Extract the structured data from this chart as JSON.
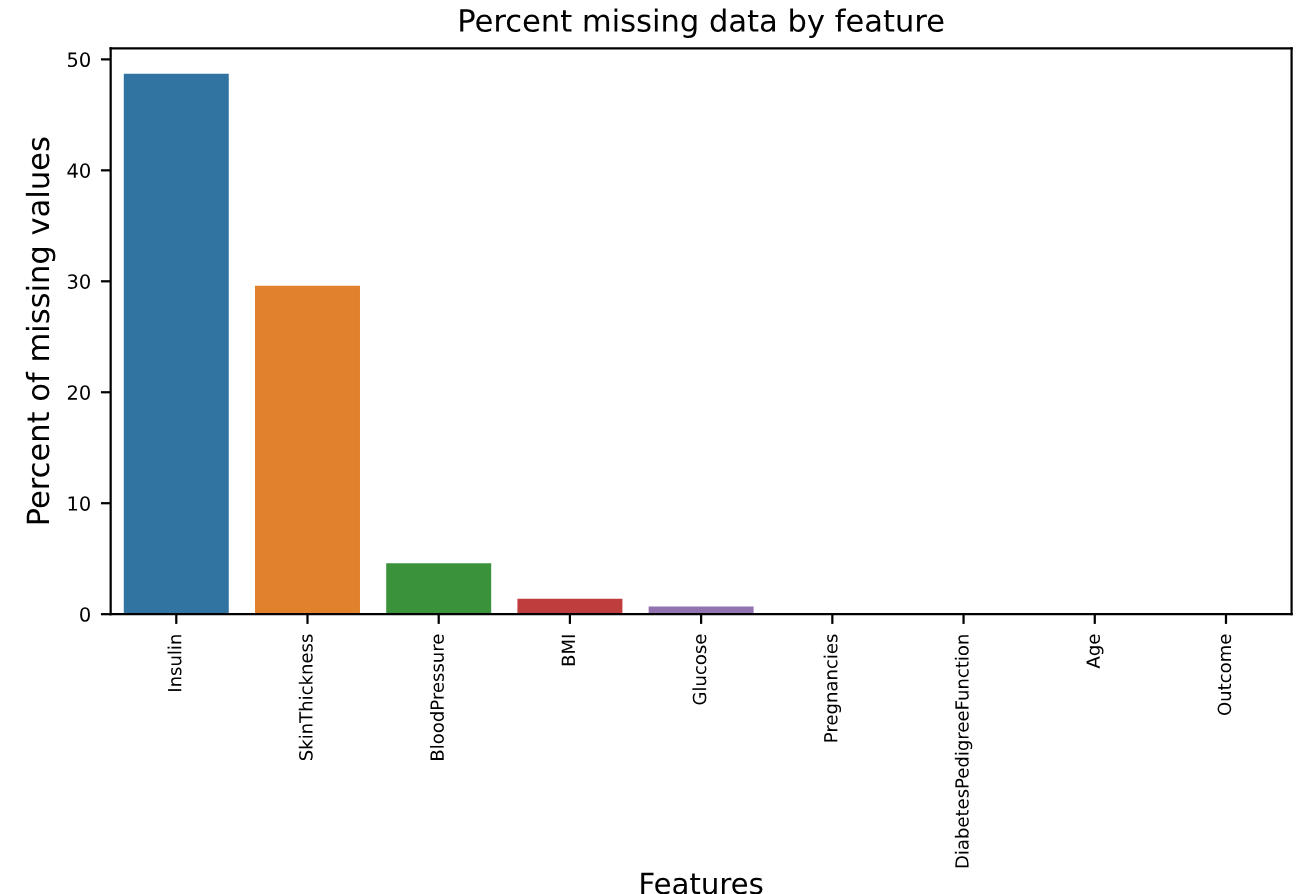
{
  "chart_data": {
    "type": "bar",
    "title": "Percent missing data by feature",
    "xlabel": "Features",
    "ylabel": "Percent of missing values",
    "categories": [
      "Insulin",
      "SkinThickness",
      "BloodPressure",
      "BMI",
      "Glucose",
      "Pregnancies",
      "DiabetesPedigreeFunction",
      "Age",
      "Outcome"
    ],
    "values": [
      48.7,
      29.6,
      4.6,
      1.4,
      0.7,
      0,
      0,
      0,
      0
    ],
    "colors": [
      "#3274a1",
      "#e1812c",
      "#3a923a",
      "#c03d3e",
      "#9372b2",
      "#845b53",
      "#d684bd",
      "#7f7f7f",
      "#a9aa35"
    ],
    "ylim": [
      0,
      51
    ],
    "yticks": [
      0,
      10,
      20,
      30,
      40,
      50
    ],
    "grid": false,
    "legend": false
  }
}
